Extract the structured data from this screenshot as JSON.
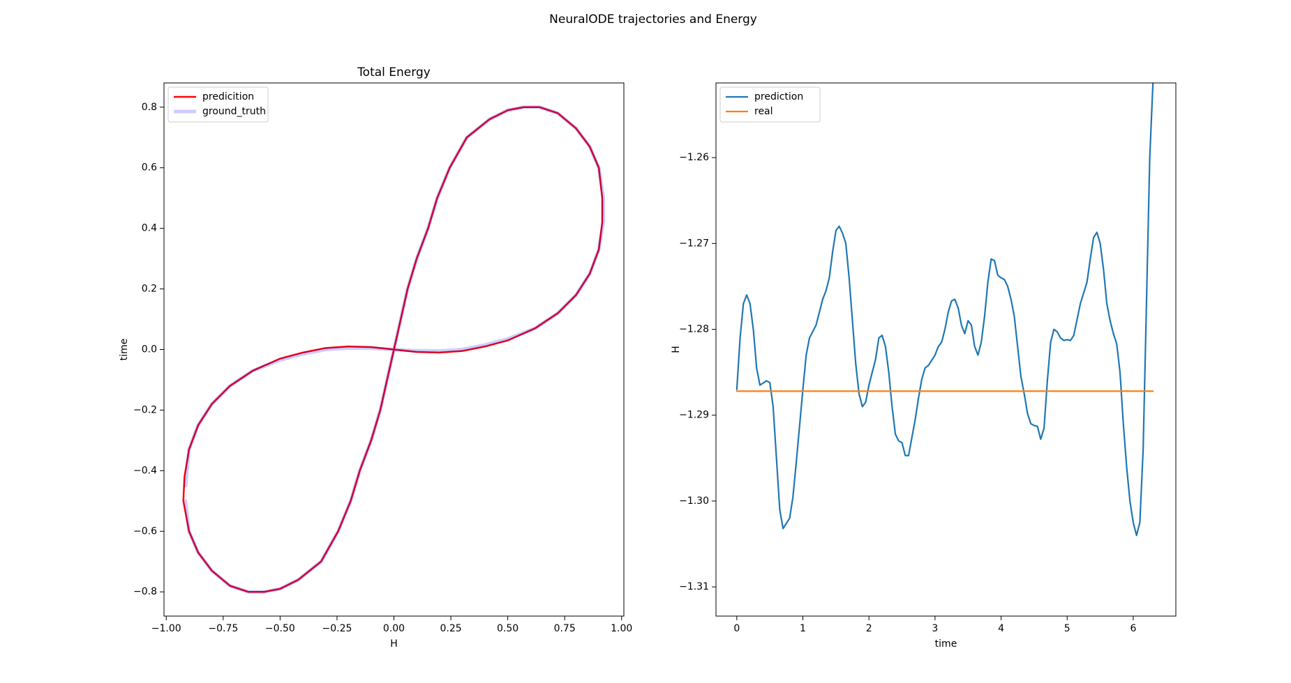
{
  "title": "NeuralODE trajectories and Energy",
  "chart_data": [
    {
      "type": "line",
      "title": "Total Energy",
      "x_label": "H",
      "y_label": "time",
      "xlim": [
        -1.01,
        1.01
      ],
      "ylim": [
        -0.88,
        0.88
      ],
      "xticks": [
        {
          "value": -1,
          "label": "−1.00"
        },
        {
          "value": -0.75,
          "label": "−0.75"
        },
        {
          "value": -0.5,
          "label": "−0.50"
        },
        {
          "value": -0.25,
          "label": "−0.25"
        },
        {
          "value": 0,
          "label": "0.00"
        },
        {
          "value": 0.25,
          "label": "0.25"
        },
        {
          "value": 0.5,
          "label": "0.50"
        },
        {
          "value": 0.75,
          "label": "0.75"
        },
        {
          "value": 1,
          "label": "1.00"
        }
      ],
      "yticks": [
        {
          "value": -0.8,
          "label": "−0.8"
        },
        {
          "value": -0.6,
          "label": "−0.6"
        },
        {
          "value": -0.4,
          "label": "−0.4"
        },
        {
          "value": -0.2,
          "label": "−0.2"
        },
        {
          "value": 0,
          "label": "0.0"
        },
        {
          "value": 0.2,
          "label": "0.2"
        },
        {
          "value": 0.4,
          "label": "0.4"
        },
        {
          "value": 0.6,
          "label": "0.6"
        },
        {
          "value": 0.8,
          "label": "0.8"
        }
      ],
      "legend": "upper left",
      "series": [
        {
          "name": "predicition",
          "color": "#ff0000",
          "alpha": 1,
          "linewidth": 2.5,
          "x": [
            -0.92,
            -0.925,
            -0.9,
            -0.86,
            -0.8,
            -0.72,
            -0.64,
            -0.57,
            -0.5,
            -0.42,
            -0.32,
            -0.245,
            -0.19,
            -0.15,
            -0.1,
            -0.06,
            -0.03,
            0,
            0.03,
            0.06,
            0.1,
            0.15,
            0.19,
            0.245,
            0.32,
            0.42,
            0.5,
            0.57,
            0.64,
            0.72,
            0.8,
            0.86,
            0.9,
            0.915,
            0.915,
            0.9,
            0.86,
            0.8,
            0.72,
            0.62,
            0.5,
            0.4,
            0.3,
            0.2,
            0.1,
            0,
            -0.1,
            -0.2,
            -0.3,
            -0.4,
            -0.5,
            -0.62,
            -0.72,
            -0.8,
            -0.86,
            -0.9,
            -0.92
          ],
          "values": [
            -0.42,
            -0.5,
            -0.6,
            -0.67,
            -0.73,
            -0.78,
            -0.8,
            -0.8,
            -0.79,
            -0.76,
            -0.7,
            -0.6,
            -0.5,
            -0.4,
            -0.3,
            -0.2,
            -0.1,
            0,
            0.1,
            0.2,
            0.3,
            0.4,
            0.5,
            0.6,
            0.7,
            0.76,
            0.79,
            0.8,
            0.8,
            0.78,
            0.73,
            0.67,
            0.6,
            0.5,
            0.42,
            0.33,
            0.25,
            0.18,
            0.12,
            0.07,
            0.03,
            0.01,
            -0.005,
            -0.01,
            -0.008,
            0,
            0.008,
            0.01,
            0.005,
            -0.01,
            -0.03,
            -0.07,
            -0.12,
            -0.18,
            -0.25,
            -0.33,
            -0.42
          ]
        },
        {
          "name": "ground_truth",
          "color": "#0000ff",
          "alpha": 0.2,
          "linewidth": 5,
          "x": [
            -0.915,
            -0.9,
            -0.86,
            -0.8,
            -0.72,
            -0.64,
            -0.57,
            -0.5,
            -0.42,
            -0.32,
            -0.245,
            -0.19,
            -0.15,
            -0.1,
            -0.06,
            -0.03,
            0,
            0.03,
            0.06,
            0.1,
            0.15,
            0.19,
            0.245,
            0.32,
            0.42,
            0.5,
            0.57,
            0.64,
            0.72,
            0.8,
            0.86,
            0.9,
            0.92,
            0.92,
            0.9,
            0.86,
            0.8,
            0.72,
            0.62,
            0.5,
            0.4,
            0.3,
            0.2,
            0.1,
            0,
            -0.1,
            -0.2,
            -0.3,
            -0.4,
            -0.5,
            -0.62,
            -0.72,
            -0.8,
            -0.86,
            -0.9,
            -0.915
          ],
          "values": [
            -0.5,
            -0.6,
            -0.67,
            -0.73,
            -0.78,
            -0.8,
            -0.8,
            -0.79,
            -0.76,
            -0.7,
            -0.6,
            -0.5,
            -0.4,
            -0.3,
            -0.2,
            -0.1,
            0,
            0.1,
            0.2,
            0.3,
            0.4,
            0.5,
            0.6,
            0.7,
            0.76,
            0.79,
            0.8,
            0.8,
            0.78,
            0.73,
            0.67,
            0.6,
            0.5,
            0.42,
            0.33,
            0.25,
            0.18,
            0.12,
            0.07,
            0.035,
            0.015,
            0,
            -0.005,
            -0.004,
            0,
            0.004,
            0.005,
            0,
            -0.015,
            -0.035,
            -0.07,
            -0.12,
            -0.18,
            -0.25,
            -0.33,
            -0.45
          ]
        }
      ]
    },
    {
      "type": "line",
      "x_label": "time",
      "y_label": "H",
      "xlim": [
        -0.315,
        6.645
      ],
      "ylim": [
        -1.3134,
        -1.2513
      ],
      "xticks": [
        0,
        1,
        2,
        3,
        4,
        5,
        6
      ],
      "yticks": [
        {
          "value": -1.31,
          "label": "−1.31"
        },
        {
          "value": -1.3,
          "label": "−1.30"
        },
        {
          "value": -1.29,
          "label": "−1.29"
        },
        {
          "value": -1.28,
          "label": "−1.28"
        },
        {
          "value": -1.27,
          "label": "−1.27"
        },
        {
          "value": -1.26,
          "label": "−1.26"
        }
      ],
      "legend": "upper left",
      "series": [
        {
          "name": "prediction",
          "color": "#1f77b4",
          "alpha": 1,
          "linewidth": 2.2,
          "x": [
            0,
            0.05,
            0.1,
            0.15,
            0.2,
            0.25,
            0.3,
            0.35,
            0.45,
            0.5,
            0.55,
            0.6,
            0.65,
            0.7,
            0.8,
            0.85,
            0.9,
            1.0,
            1.05,
            1.1,
            1.2,
            1.3,
            1.35,
            1.4,
            1.45,
            1.5,
            1.55,
            1.6,
            1.65,
            1.7,
            1.8,
            1.85,
            1.9,
            1.95,
            2.0,
            2.1,
            2.15,
            2.2,
            2.25,
            2.3,
            2.35,
            2.4,
            2.45,
            2.5,
            2.55,
            2.6,
            2.7,
            2.75,
            2.8,
            2.85,
            2.9,
            3.0,
            3.05,
            3.1,
            3.15,
            3.2,
            3.25,
            3.3,
            3.35,
            3.4,
            3.45,
            3.5,
            3.55,
            3.6,
            3.65,
            3.7,
            3.75,
            3.8,
            3.85,
            3.9,
            3.95,
            4.0,
            4.05,
            4.1,
            4.15,
            4.2,
            4.3,
            4.35,
            4.4,
            4.45,
            4.5,
            4.55,
            4.6,
            4.65,
            4.7,
            4.75,
            4.8,
            4.85,
            4.9,
            4.95,
            5.0,
            5.05,
            5.1,
            5.2,
            5.3,
            5.35,
            5.4,
            5.45,
            5.5,
            5.55,
            5.6,
            5.65,
            5.7,
            5.75,
            5.8,
            5.85,
            5.9,
            5.95,
            6.0,
            6.05,
            6.1,
            6.15,
            6.2,
            6.25,
            6.3
          ],
          "values": [
            -1.287,
            -1.281,
            -1.277,
            -1.276,
            -1.277,
            -1.28,
            -1.2845,
            -1.2865,
            -1.286,
            -1.2862,
            -1.289,
            -1.295,
            -1.301,
            -1.3032,
            -1.302,
            -1.2995,
            -1.2955,
            -1.287,
            -1.283,
            -1.281,
            -1.2795,
            -1.2765,
            -1.2755,
            -1.274,
            -1.271,
            -1.2685,
            -1.268,
            -1.2688,
            -1.27,
            -1.274,
            -1.284,
            -1.2875,
            -1.289,
            -1.2885,
            -1.2865,
            -1.2835,
            -1.281,
            -1.2807,
            -1.282,
            -1.285,
            -1.289,
            -1.2922,
            -1.293,
            -1.2932,
            -1.2947,
            -1.2947,
            -1.2905,
            -1.288,
            -1.2858,
            -1.2845,
            -1.2842,
            -1.283,
            -1.282,
            -1.2815,
            -1.28,
            -1.278,
            -1.2767,
            -1.2765,
            -1.2775,
            -1.2795,
            -1.2805,
            -1.279,
            -1.2795,
            -1.282,
            -1.283,
            -1.2815,
            -1.2785,
            -1.2745,
            -1.2718,
            -1.272,
            -1.2737,
            -1.274,
            -1.2742,
            -1.275,
            -1.2765,
            -1.2785,
            -1.2855,
            -1.2875,
            -1.2898,
            -1.291,
            -1.2912,
            -1.2913,
            -1.2928,
            -1.2915,
            -1.286,
            -1.2815,
            -1.28,
            -1.2803,
            -1.281,
            -1.2813,
            -1.2812,
            -1.2813,
            -1.2807,
            -1.277,
            -1.2745,
            -1.2718,
            -1.2693,
            -1.2687,
            -1.27,
            -1.273,
            -1.277,
            -1.279,
            -1.2805,
            -1.2817,
            -1.285,
            -1.291,
            -1.296,
            -1.3,
            -1.3025,
            -1.304,
            -1.3025,
            -1.294,
            -1.277,
            -1.26,
            -1.251
          ]
        },
        {
          "name": "real",
          "color": "#ff7f0e",
          "alpha": 1,
          "linewidth": 2.2,
          "x": [
            0,
            6.3
          ],
          "values": [
            -1.2872,
            -1.2872
          ]
        }
      ]
    }
  ]
}
